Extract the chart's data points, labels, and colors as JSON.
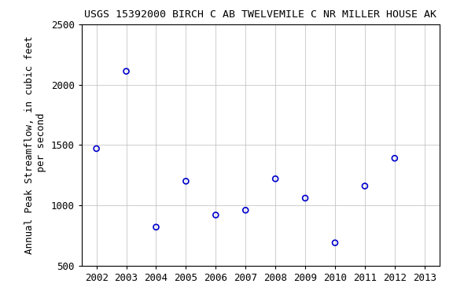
{
  "title": "USGS 15392000 BIRCH C AB TWELVEMILE C NR MILLER HOUSE AK",
  "ylabel": "Annual Peak Streamflow, in cubic feet\n per second",
  "years": [
    2002,
    2003,
    2004,
    2005,
    2006,
    2007,
    2008,
    2009,
    2010,
    2011,
    2012
  ],
  "values": [
    1470,
    2110,
    820,
    1200,
    920,
    960,
    1220,
    1060,
    690,
    1160,
    1390
  ],
  "xlim": [
    2001.5,
    2013.5
  ],
  "ylim": [
    500,
    2500
  ],
  "xticks": [
    2002,
    2003,
    2004,
    2005,
    2006,
    2007,
    2008,
    2009,
    2010,
    2011,
    2012,
    2013
  ],
  "yticks": [
    500,
    1000,
    1500,
    2000,
    2500
  ],
  "marker_color": "#0000CC",
  "marker_size": 5,
  "grid_color": "#bbbbbb",
  "bg_color": "#ffffff",
  "title_fontsize": 9.5,
  "label_fontsize": 9,
  "tick_fontsize": 9
}
